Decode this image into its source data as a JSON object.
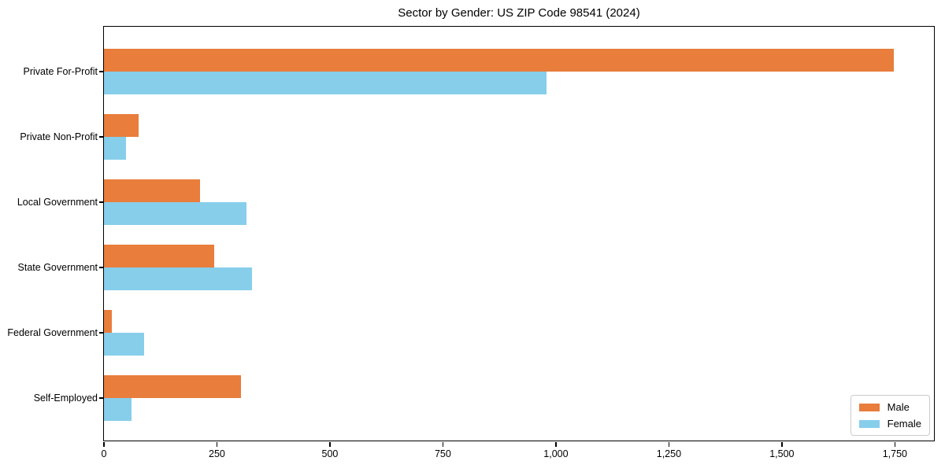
{
  "chart_data": {
    "type": "bar",
    "orientation": "horizontal",
    "title": "Sector by Gender: US ZIP Code 98541 (2024)",
    "categories": [
      "Private For-Profit",
      "Private Non-Profit",
      "Local Government",
      "State Government",
      "Federal Government",
      "Self-Employed"
    ],
    "series": [
      {
        "name": "Male",
        "color": "#E87D3C",
        "values": [
          1748,
          77,
          212,
          243,
          17,
          303
        ]
      },
      {
        "name": "Female",
        "color": "#87CEEB",
        "values": [
          979,
          48,
          316,
          328,
          88,
          61
        ]
      }
    ],
    "xlabel": "",
    "ylabel": "",
    "xlim": [
      0,
      1840
    ],
    "xticks": [
      0,
      250,
      500,
      750,
      1000,
      1250,
      1500,
      1750
    ],
    "xtick_labels": [
      "0",
      "250",
      "500",
      "750",
      "1,000",
      "1,250",
      "1,500",
      "1,750"
    ],
    "grid": false,
    "legend": {
      "position": "lower right",
      "entries": [
        "Male",
        "Female"
      ]
    }
  }
}
